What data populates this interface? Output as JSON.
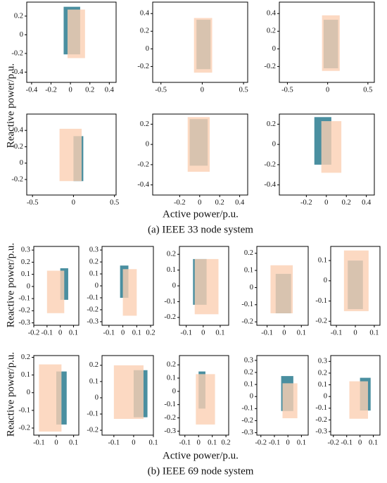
{
  "figure": {
    "panels": [
      {
        "caption": "(a) IEEE 33 node system",
        "xlabel": "Active power/p.u.",
        "ylabel": "Reactive power/p.u."
      },
      {
        "caption": "(b) IEEE 69 node system",
        "xlabel": "Active power/p.u.",
        "ylabel": "Reactive power/p.u."
      }
    ]
  },
  "chart_data": [
    {
      "type": "region",
      "xlim": [
        -0.45,
        0.47
      ],
      "ylim": [
        -0.51,
        0.35
      ],
      "xticks": [
        -0.4,
        -0.2,
        0,
        0.2,
        0.4
      ],
      "yticks": [
        0.2,
        0,
        -0.2,
        -0.4
      ],
      "series": [
        {
          "color": "#4a8fa0",
          "x": [
            -0.07,
            0.1
          ],
          "y": [
            -0.21,
            0.3
          ]
        },
        {
          "color": "#fbcfb3",
          "opacity": 0.8,
          "x": [
            -0.03,
            0.15
          ],
          "y": [
            -0.25,
            0.27
          ]
        }
      ]
    },
    {
      "type": "region",
      "xlim": [
        -0.6,
        0.55
      ],
      "ylim": [
        -0.38,
        0.53
      ],
      "xticks": [
        -0.5,
        0,
        0.5
      ],
      "yticks": [
        0.4,
        0.2,
        0,
        -0.2
      ],
      "series": [
        {
          "color": "#4a8fa0",
          "x": [
            -0.07,
            0.1
          ],
          "y": [
            -0.23,
            0.33
          ]
        },
        {
          "color": "#fbcfb3",
          "opacity": 0.8,
          "x": [
            -0.1,
            0.12
          ],
          "y": [
            -0.27,
            0.35
          ]
        }
      ]
    },
    {
      "type": "region",
      "xlim": [
        -0.6,
        0.58
      ],
      "ylim": [
        -0.38,
        0.53
      ],
      "xticks": [
        -0.5,
        0,
        0.5
      ],
      "yticks": [
        0.4,
        0.2,
        0,
        -0.2
      ],
      "series": [
        {
          "color": "#4a8fa0",
          "x": [
            -0.05,
            0.13
          ],
          "y": [
            -0.22,
            0.33
          ]
        },
        {
          "color": "#fbcfb3",
          "opacity": 0.8,
          "x": [
            -0.07,
            0.15
          ],
          "y": [
            -0.25,
            0.38
          ]
        }
      ]
    },
    {
      "type": "region",
      "xlim": [
        -0.57,
        0.52
      ],
      "ylim": [
        -0.39,
        0.6
      ],
      "xticks": [
        -0.5,
        0,
        0.5
      ],
      "yticks": [
        0.4,
        0.2,
        0,
        -0.2
      ],
      "series": [
        {
          "color": "#4a8fa0",
          "x": [
            0,
            0.12
          ],
          "y": [
            -0.22,
            0.33
          ]
        },
        {
          "color": "#fbcfb3",
          "opacity": 0.8,
          "x": [
            -0.17,
            0.1
          ],
          "y": [
            -0.22,
            0.42
          ]
        }
      ]
    },
    {
      "type": "region",
      "xlim": [
        -0.47,
        0.48
      ],
      "ylim": [
        -0.5,
        0.3
      ],
      "xticks": [
        -0.2,
        0,
        0.2,
        0.4
      ],
      "yticks": [
        0.2,
        0,
        -0.2,
        -0.4
      ],
      "series": [
        {
          "color": "#4a8fa0",
          "x": [
            -0.1,
            0.08
          ],
          "y": [
            -0.21,
            0.25
          ]
        },
        {
          "color": "#fbcfb3",
          "opacity": 0.8,
          "x": [
            -0.12,
            0.1
          ],
          "y": [
            -0.27,
            0.27
          ]
        }
      ]
    },
    {
      "type": "region",
      "xlim": [
        -0.47,
        0.48
      ],
      "ylim": [
        -0.5,
        0.3
      ],
      "xticks": [
        -0.2,
        0,
        0.2,
        0.4
      ],
      "yticks": [
        0.2,
        0,
        -0.2,
        -0.4
      ],
      "series": [
        {
          "color": "#4a8fa0",
          "x": [
            -0.12,
            0.05
          ],
          "y": [
            -0.2,
            0.27
          ]
        },
        {
          "color": "#fbcfb3",
          "opacity": 0.8,
          "x": [
            -0.05,
            0.15
          ],
          "y": [
            -0.28,
            0.23
          ]
        }
      ]
    },
    {
      "type": "region",
      "xlim": [
        -0.2,
        0.14
      ],
      "ylim": [
        -0.32,
        0.33
      ],
      "xticks": [
        -0.2,
        -0.1,
        0,
        0.1
      ],
      "yticks": [
        0.3,
        0.2,
        0.1,
        0,
        -0.1,
        -0.2,
        -0.3
      ],
      "series": [
        {
          "color": "#4a8fa0",
          "x": [
            0,
            0.06
          ],
          "y": [
            -0.11,
            0.15
          ]
        },
        {
          "color": "#fbcfb3",
          "opacity": 0.8,
          "x": [
            -0.1,
            0.03
          ],
          "y": [
            -0.22,
            0.13
          ]
        }
      ]
    },
    {
      "type": "region",
      "xlim": [
        -0.15,
        0.22
      ],
      "ylim": [
        -0.33,
        0.33
      ],
      "xticks": [
        -0.1,
        0,
        0.1,
        0.2
      ],
      "yticks": [
        0.3,
        0.2,
        0.1,
        0,
        -0.1,
        -0.2,
        -0.3
      ],
      "series": [
        {
          "color": "#4a8fa0",
          "x": [
            -0.02,
            0.04
          ],
          "y": [
            -0.1,
            0.17
          ]
        },
        {
          "color": "#fbcfb3",
          "opacity": 0.8,
          "x": [
            0,
            0.1
          ],
          "y": [
            -0.25,
            0.14
          ]
        }
      ]
    },
    {
      "type": "region",
      "xlim": [
        -0.14,
        0.15
      ],
      "ylim": [
        -0.25,
        0.25
      ],
      "xticks": [
        -0.1,
        0,
        0.1
      ],
      "yticks": [
        0.2,
        0.1,
        0,
        -0.1,
        -0.2
      ],
      "series": [
        {
          "color": "#4a8fa0",
          "x": [
            -0.06,
            0.02
          ],
          "y": [
            -0.12,
            0.17
          ]
        },
        {
          "color": "#fbcfb3",
          "opacity": 0.8,
          "x": [
            -0.05,
            0.09
          ],
          "y": [
            -0.18,
            0.17
          ]
        }
      ]
    },
    {
      "type": "region",
      "xlim": [
        -0.16,
        0.14
      ],
      "ylim": [
        -0.22,
        0.24
      ],
      "xticks": [
        -0.1,
        0,
        0.1
      ],
      "yticks": [
        0.2,
        0.1,
        0,
        -0.1,
        -0.2
      ],
      "series": [
        {
          "color": "#4a8fa0",
          "x": [
            -0.05,
            0.04
          ],
          "y": [
            -0.15,
            0.08
          ]
        },
        {
          "color": "#fbcfb3",
          "opacity": 0.8,
          "x": [
            -0.08,
            0.05
          ],
          "y": [
            -0.15,
            0.13
          ]
        }
      ]
    },
    {
      "type": "region",
      "xlim": [
        -0.13,
        0.13
      ],
      "ylim": [
        -0.22,
        0.17
      ],
      "xticks": [
        -0.1,
        0,
        0.1
      ],
      "yticks": [
        0.1,
        0,
        -0.1,
        -0.2
      ],
      "series": [
        {
          "color": "#4a8fa0",
          "x": [
            -0.04,
            0.04
          ],
          "y": [
            -0.14,
            0.1
          ]
        },
        {
          "color": "#fbcfb3",
          "opacity": 0.8,
          "x": [
            -0.06,
            0.07
          ],
          "y": [
            -0.15,
            0.15
          ]
        }
      ]
    },
    {
      "type": "region",
      "xlim": [
        -0.13,
        0.13
      ],
      "ylim": [
        -0.24,
        0.21
      ],
      "xticks": [
        -0.1,
        0,
        0.1
      ],
      "yticks": [
        0.2,
        0.1,
        0,
        -0.1,
        -0.2
      ],
      "series": [
        {
          "color": "#4a8fa0",
          "x": [
            0,
            0.06
          ],
          "y": [
            -0.18,
            0.12
          ]
        },
        {
          "color": "#fbcfb3",
          "opacity": 0.8,
          "x": [
            -0.1,
            0.03
          ],
          "y": [
            -0.22,
            0.16
          ]
        }
      ]
    },
    {
      "type": "region",
      "xlim": [
        -0.16,
        0.1
      ],
      "ylim": [
        -0.23,
        0.26
      ],
      "xticks": [
        -0.1,
        0,
        0.1
      ],
      "yticks": [
        0.2,
        0.1,
        0,
        -0.1,
        -0.2
      ],
      "series": [
        {
          "color": "#4a8fa0",
          "x": [
            0,
            0.07
          ],
          "y": [
            -0.12,
            0.17
          ]
        },
        {
          "color": "#fbcfb3",
          "opacity": 0.8,
          "x": [
            -0.1,
            0.05
          ],
          "y": [
            -0.13,
            0.2
          ]
        }
      ]
    },
    {
      "type": "region",
      "xlim": [
        -0.14,
        0.22
      ],
      "ylim": [
        -0.33,
        0.27
      ],
      "xticks": [
        -0.1,
        0,
        0.1,
        0.2
      ],
      "yticks": [
        0.2,
        0.1,
        0,
        -0.1,
        -0.2,
        -0.3
      ],
      "series": [
        {
          "color": "#4a8fa0",
          "x": [
            0,
            0.05
          ],
          "y": [
            -0.13,
            0.15
          ]
        },
        {
          "color": "#fbcfb3",
          "opacity": 0.8,
          "x": [
            -0.02,
            0.12
          ],
          "y": [
            -0.25,
            0.13
          ]
        }
      ]
    },
    {
      "type": "region",
      "xlim": [
        -0.23,
        0.15
      ],
      "ylim": [
        -0.32,
        0.34
      ],
      "xticks": [
        -0.2,
        -0.1,
        0,
        0.1
      ],
      "yticks": [
        0.3,
        0.2,
        0.1,
        0,
        -0.1,
        -0.2,
        -0.3
      ],
      "series": [
        {
          "color": "#4a8fa0",
          "x": [
            -0.05,
            0.04
          ],
          "y": [
            -0.12,
            0.17
          ]
        },
        {
          "color": "#fbcfb3",
          "opacity": 0.8,
          "x": [
            -0.04,
            0.07
          ],
          "y": [
            -0.18,
            0.11
          ]
        }
      ]
    },
    {
      "type": "region",
      "xlim": [
        -0.22,
        0.15
      ],
      "ylim": [
        -0.33,
        0.35
      ],
      "xticks": [
        -0.2,
        -0.1,
        0,
        0.1
      ],
      "yticks": [
        0.3,
        0.2,
        0.1,
        0,
        -0.1,
        -0.2,
        -0.3
      ],
      "series": [
        {
          "color": "#4a8fa0",
          "x": [
            0,
            0.08
          ],
          "y": [
            -0.12,
            0.16
          ]
        },
        {
          "color": "#fbcfb3",
          "opacity": 0.8,
          "x": [
            -0.08,
            0.06
          ],
          "y": [
            -0.19,
            0.13
          ]
        }
      ]
    }
  ]
}
